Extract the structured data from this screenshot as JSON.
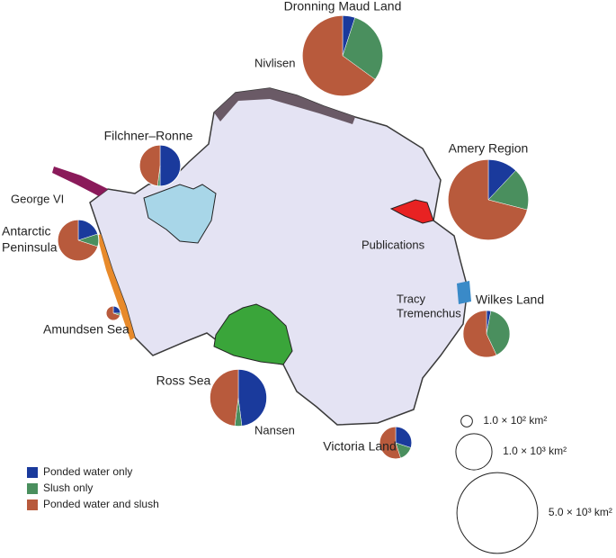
{
  "pies": [
    {
      "label": [
        "Dronning Maud Land"
      ],
      "area": 5000,
      "shares": [
        5,
        30,
        65
      ]
    },
    {
      "label": [
        "Filchner–Ronne"
      ],
      "area": 1300,
      "shares": [
        50,
        2,
        48
      ]
    },
    {
      "label": [
        "Amery Region"
      ],
      "area": 5000,
      "shares": [
        12,
        17,
        71
      ]
    },
    {
      "label": [
        "Antarctic",
        "Peninsula"
      ],
      "area": 1300,
      "shares": [
        20,
        10,
        70
      ]
    },
    {
      "label": [
        "Amundsen Sea"
      ],
      "area": 160,
      "shares": [
        25,
        5,
        70
      ]
    },
    {
      "label": [
        "Wilkes Land"
      ],
      "area": 1700,
      "shares": [
        3,
        40,
        57
      ]
    },
    {
      "label": [
        "Ross Sea"
      ],
      "area": 2500,
      "shares": [
        48,
        4,
        48
      ]
    },
    {
      "label": [
        "Victoria Land"
      ],
      "area": 800,
      "shares": [
        30,
        15,
        55
      ]
    }
  ],
  "legend": [
    {
      "label": "Ponded water only",
      "color": "#1a3a9c"
    },
    {
      "label": "Slush only",
      "color": "#4a8f5e"
    },
    {
      "label": "Ponded water and slush",
      "color": "#b85a3c"
    }
  ],
  "size_legend": [
    {
      "value": 100,
      "label": "1.0 × 10² km²"
    },
    {
      "value": 1000,
      "label": "1.0 × 10³ km²"
    },
    {
      "value": 5000,
      "label": "5.0 × 10³ km²"
    }
  ],
  "map_labels": [
    {
      "lines": [
        "George VI"
      ],
      "color": "#7a1a5a"
    },
    {
      "lines": [
        "Nivlisen"
      ],
      "color": "#888888"
    },
    {
      "lines": [
        "Publications"
      ],
      "color": "#e02020"
    },
    {
      "lines": [
        "Tracy",
        "Tremenchus"
      ],
      "color": "#4a78c8"
    },
    {
      "lines": [
        "Nansen"
      ],
      "color": "#f0a0a0"
    }
  ]
}
